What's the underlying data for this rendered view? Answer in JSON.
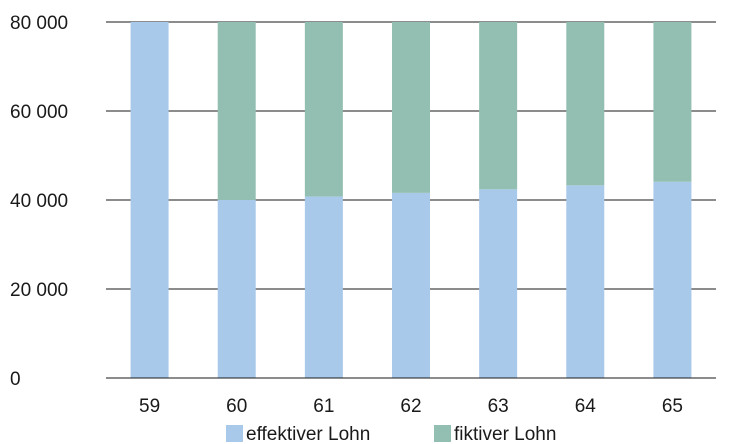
{
  "chart_data": {
    "type": "bar",
    "stacked": true,
    "categories": [
      "59",
      "60",
      "61",
      "62",
      "63",
      "64",
      "65"
    ],
    "series": [
      {
        "name": "effektiver Lohn",
        "color": "#a8c9e9",
        "values": [
          80000,
          40000,
          40800,
          41600,
          42400,
          43300,
          44100
        ]
      },
      {
        "name": "fiktiver Lohn",
        "color": "#93bfb2",
        "values": [
          0,
          40000,
          39200,
          38400,
          37600,
          36700,
          35900
        ]
      }
    ],
    "y_ticks": [
      "0",
      "20 000",
      "40 000",
      "60 000",
      "80 000"
    ],
    "ylim": [
      0,
      80000
    ],
    "grid": true,
    "legend": "bottom",
    "title": "",
    "xlabel": "",
    "ylabel": ""
  }
}
